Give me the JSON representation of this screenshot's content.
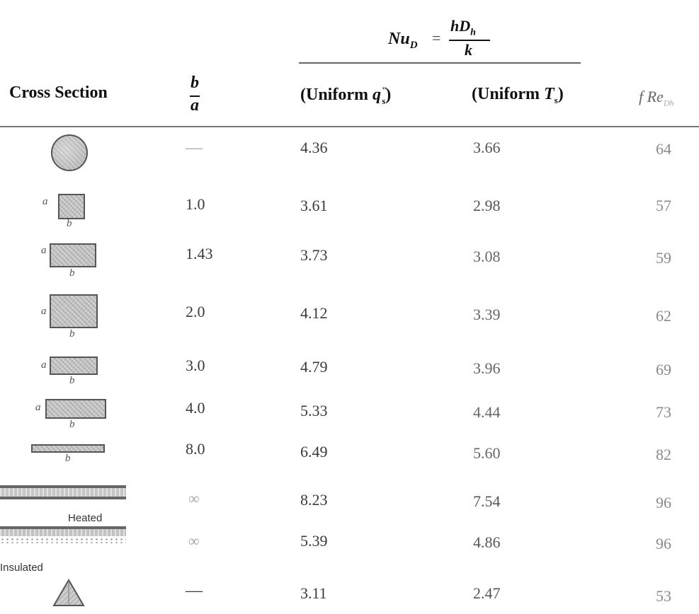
{
  "equation": {
    "lhs": "Nu",
    "lhs_sub": "D",
    "equals": "=",
    "numerator_h": "hD",
    "numerator_sub": "h",
    "denominator": "k"
  },
  "header": {
    "cross_section": "Cross Section",
    "ratio_num": "b",
    "ratio_den": "a",
    "uniform_q_prefix": "(Uniform ",
    "uniform_q_var": "q",
    "uniform_q_sup": "\"",
    "uniform_q_sub": "s",
    "uniform_q_suffix": ")",
    "uniform_t_prefix": "(Uniform ",
    "uniform_t_var": "T",
    "uniform_t_sub": "s",
    "uniform_t_suffix": ")",
    "f_re": "f Re",
    "f_re_sub": "Dh"
  },
  "labels": {
    "a": "a",
    "b": "b",
    "heated": "Heated",
    "insulated": "Insulated"
  },
  "rows": [
    {
      "shape": "circle",
      "ratio": "—",
      "nu_q": "4.36",
      "nu_t": "3.66",
      "fre": "64"
    },
    {
      "shape": "rect",
      "ratio": "1.0",
      "nu_q": "3.61",
      "nu_t": "2.98",
      "fre": "57"
    },
    {
      "shape": "rect",
      "ratio": "1.43",
      "nu_q": "3.73",
      "nu_t": "3.08",
      "fre": "59"
    },
    {
      "shape": "rect",
      "ratio": "2.0",
      "nu_q": "4.12",
      "nu_t": "3.39",
      "fre": "62"
    },
    {
      "shape": "rect",
      "ratio": "3.0",
      "nu_q": "4.79",
      "nu_t": "3.96",
      "fre": "69"
    },
    {
      "shape": "rect",
      "ratio": "4.0",
      "nu_q": "5.33",
      "nu_t": "4.44",
      "fre": "73"
    },
    {
      "shape": "rect",
      "ratio": "8.0",
      "nu_q": "6.49",
      "nu_t": "5.60",
      "fre": "82"
    },
    {
      "shape": "parallel-plates",
      "ratio": "∞",
      "nu_q": "8.23",
      "nu_t": "7.54",
      "fre": "96"
    },
    {
      "shape": "plates-heated-insulated",
      "ratio": "∞",
      "nu_q": "5.39",
      "nu_t": "4.86",
      "fre": "96"
    },
    {
      "shape": "triangle",
      "ratio": "—",
      "nu_q": "3.11",
      "nu_t": "2.47",
      "fre": "53"
    }
  ]
}
